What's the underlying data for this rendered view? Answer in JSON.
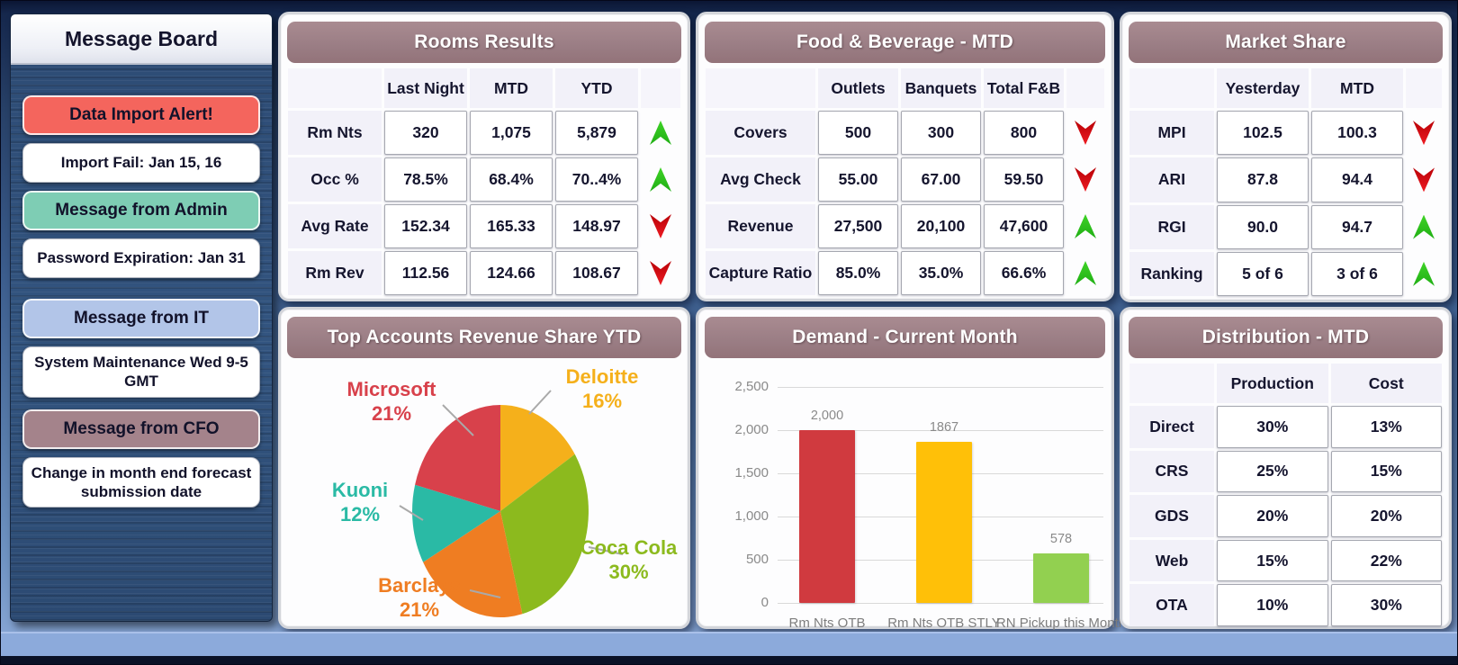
{
  "colors": {
    "panel_header": "#9a7d84",
    "trend_up": "#1fae14",
    "trend_down": "#ee1c23",
    "sidebar_alert_red": "#f4655d",
    "sidebar_alert_teal": "#7ecdb4",
    "sidebar_alert_blue": "#b2c5e8",
    "sidebar_alert_mauve": "#a4838b",
    "sidebar_note_white": "#ffffff"
  },
  "sidebar": {
    "title": "Message Board",
    "items": [
      {
        "name": "alert-data-import",
        "label": "Data Import Alert!",
        "style": "alert",
        "color": "#f4655d"
      },
      {
        "name": "note-import-fail",
        "label": "Import Fail: Jan 15, 16",
        "style": "note",
        "color": "#ffffff"
      },
      {
        "name": "alert-message-admin",
        "label": "Message from Admin",
        "style": "alert",
        "color": "#7ecdb4"
      },
      {
        "name": "note-password-expiration",
        "label": "Password Expiration: Jan 31",
        "style": "note",
        "color": "#ffffff"
      },
      {
        "name": "alert-message-it",
        "label": "Message from IT",
        "style": "alert",
        "color": "#b2c5e8"
      },
      {
        "name": "note-system-maintenance",
        "label": "System Maintenance Wed 9-5 GMT",
        "style": "note",
        "color": "#ffffff"
      },
      {
        "name": "alert-message-cfo",
        "label": "Message from CFO",
        "style": "alert",
        "color": "#a4838b"
      },
      {
        "name": "note-forecast-change",
        "label": "Change in month end forecast submission date",
        "style": "note",
        "color": "#ffffff"
      }
    ]
  },
  "panels": {
    "rooms": {
      "title": "Rooms Results",
      "columns": [
        "Last Night",
        "MTD",
        "YTD"
      ],
      "rows": [
        {
          "label": "Rm Nts",
          "values": [
            "320",
            "1,075",
            "5,879"
          ],
          "trend": "up"
        },
        {
          "label": "Occ %",
          "values": [
            "78.5%",
            "68.4%",
            "70..4%"
          ],
          "trend": "up"
        },
        {
          "label": "Avg Rate",
          "values": [
            "152.34",
            "165.33",
            "148.97"
          ],
          "trend": "down"
        },
        {
          "label": "Rm Rev",
          "values": [
            "112.56",
            "124.66",
            "108.67"
          ],
          "trend": "down"
        }
      ]
    },
    "fnb": {
      "title": "Food & Beverage - MTD",
      "columns": [
        "Outlets",
        "Banquets",
        "Total F&B"
      ],
      "rows": [
        {
          "label": "Covers",
          "values": [
            "500",
            "300",
            "800"
          ],
          "trend": "down"
        },
        {
          "label": "Avg Check",
          "values": [
            "55.00",
            "67.00",
            "59.50"
          ],
          "trend": "down"
        },
        {
          "label": "Revenue",
          "values": [
            "27,500",
            "20,100",
            "47,600"
          ],
          "trend": "up"
        },
        {
          "label": "Capture Ratio",
          "values": [
            "85.0%",
            "35.0%",
            "66.6%"
          ],
          "trend": "up"
        }
      ]
    },
    "market": {
      "title": "Market Share",
      "columns": [
        "Yesterday",
        "MTD"
      ],
      "rows": [
        {
          "label": "MPI",
          "values": [
            "102.5",
            "100.3"
          ],
          "trend": "down"
        },
        {
          "label": "ARI",
          "values": [
            "87.8",
            "94.4"
          ],
          "trend": "down"
        },
        {
          "label": "RGI",
          "values": [
            "90.0",
            "94.7"
          ],
          "trend": "up"
        },
        {
          "label": "Ranking",
          "values": [
            "5 of 6",
            "3 of 6"
          ],
          "trend": "up"
        }
      ]
    },
    "pie": {
      "title": "Top Accounts Revenue Share YTD"
    },
    "demand": {
      "title": "Demand - Current Month"
    },
    "distribution": {
      "title": "Distribution - MTD",
      "columns": [
        "Production",
        "Cost"
      ],
      "rows": [
        {
          "label": "Direct",
          "values": [
            "30%",
            "13%"
          ]
        },
        {
          "label": "CRS",
          "values": [
            "25%",
            "15%"
          ]
        },
        {
          "label": "GDS",
          "values": [
            "20%",
            "20%"
          ]
        },
        {
          "label": "Web",
          "values": [
            "15%",
            "22%"
          ]
        },
        {
          "label": "OTA",
          "values": [
            "10%",
            "30%"
          ]
        }
      ]
    }
  },
  "chart_data": [
    {
      "type": "pie",
      "title": "Top Accounts Revenue Share YTD",
      "labels": [
        "Deloitte",
        "Coca Cola",
        "Barclays",
        "Kuoni",
        "Microsoft"
      ],
      "values": [
        16,
        30,
        21,
        12,
        21
      ],
      "pct_labels": [
        "16%",
        "30%",
        "21%",
        "12%",
        "21%"
      ],
      "colors": [
        "#f5b01b",
        "#8cba1e",
        "#ef7d22",
        "#2abaa5",
        "#d8414b"
      ],
      "start_angle_deg": 0,
      "direction": "clockwise",
      "legend_position": "callout-labels"
    },
    {
      "type": "bar",
      "title": "Demand - Current Month",
      "categories": [
        "Rm Nts OTB",
        "Rm Nts OTB STLY",
        "RN Pickup this Month"
      ],
      "values": [
        2000,
        1867,
        578
      ],
      "data_labels": [
        "2,000",
        "1867",
        "578"
      ],
      "colors": [
        "#d03a3f",
        "#ffc008",
        "#92d050"
      ],
      "ylim": [
        0,
        2500
      ],
      "ytick_step": 500,
      "ytick_labels": [
        "0",
        "500",
        "1,000",
        "1,500",
        "2,000",
        "2,500"
      ],
      "grid": true,
      "xlabel": "",
      "ylabel": ""
    }
  ]
}
